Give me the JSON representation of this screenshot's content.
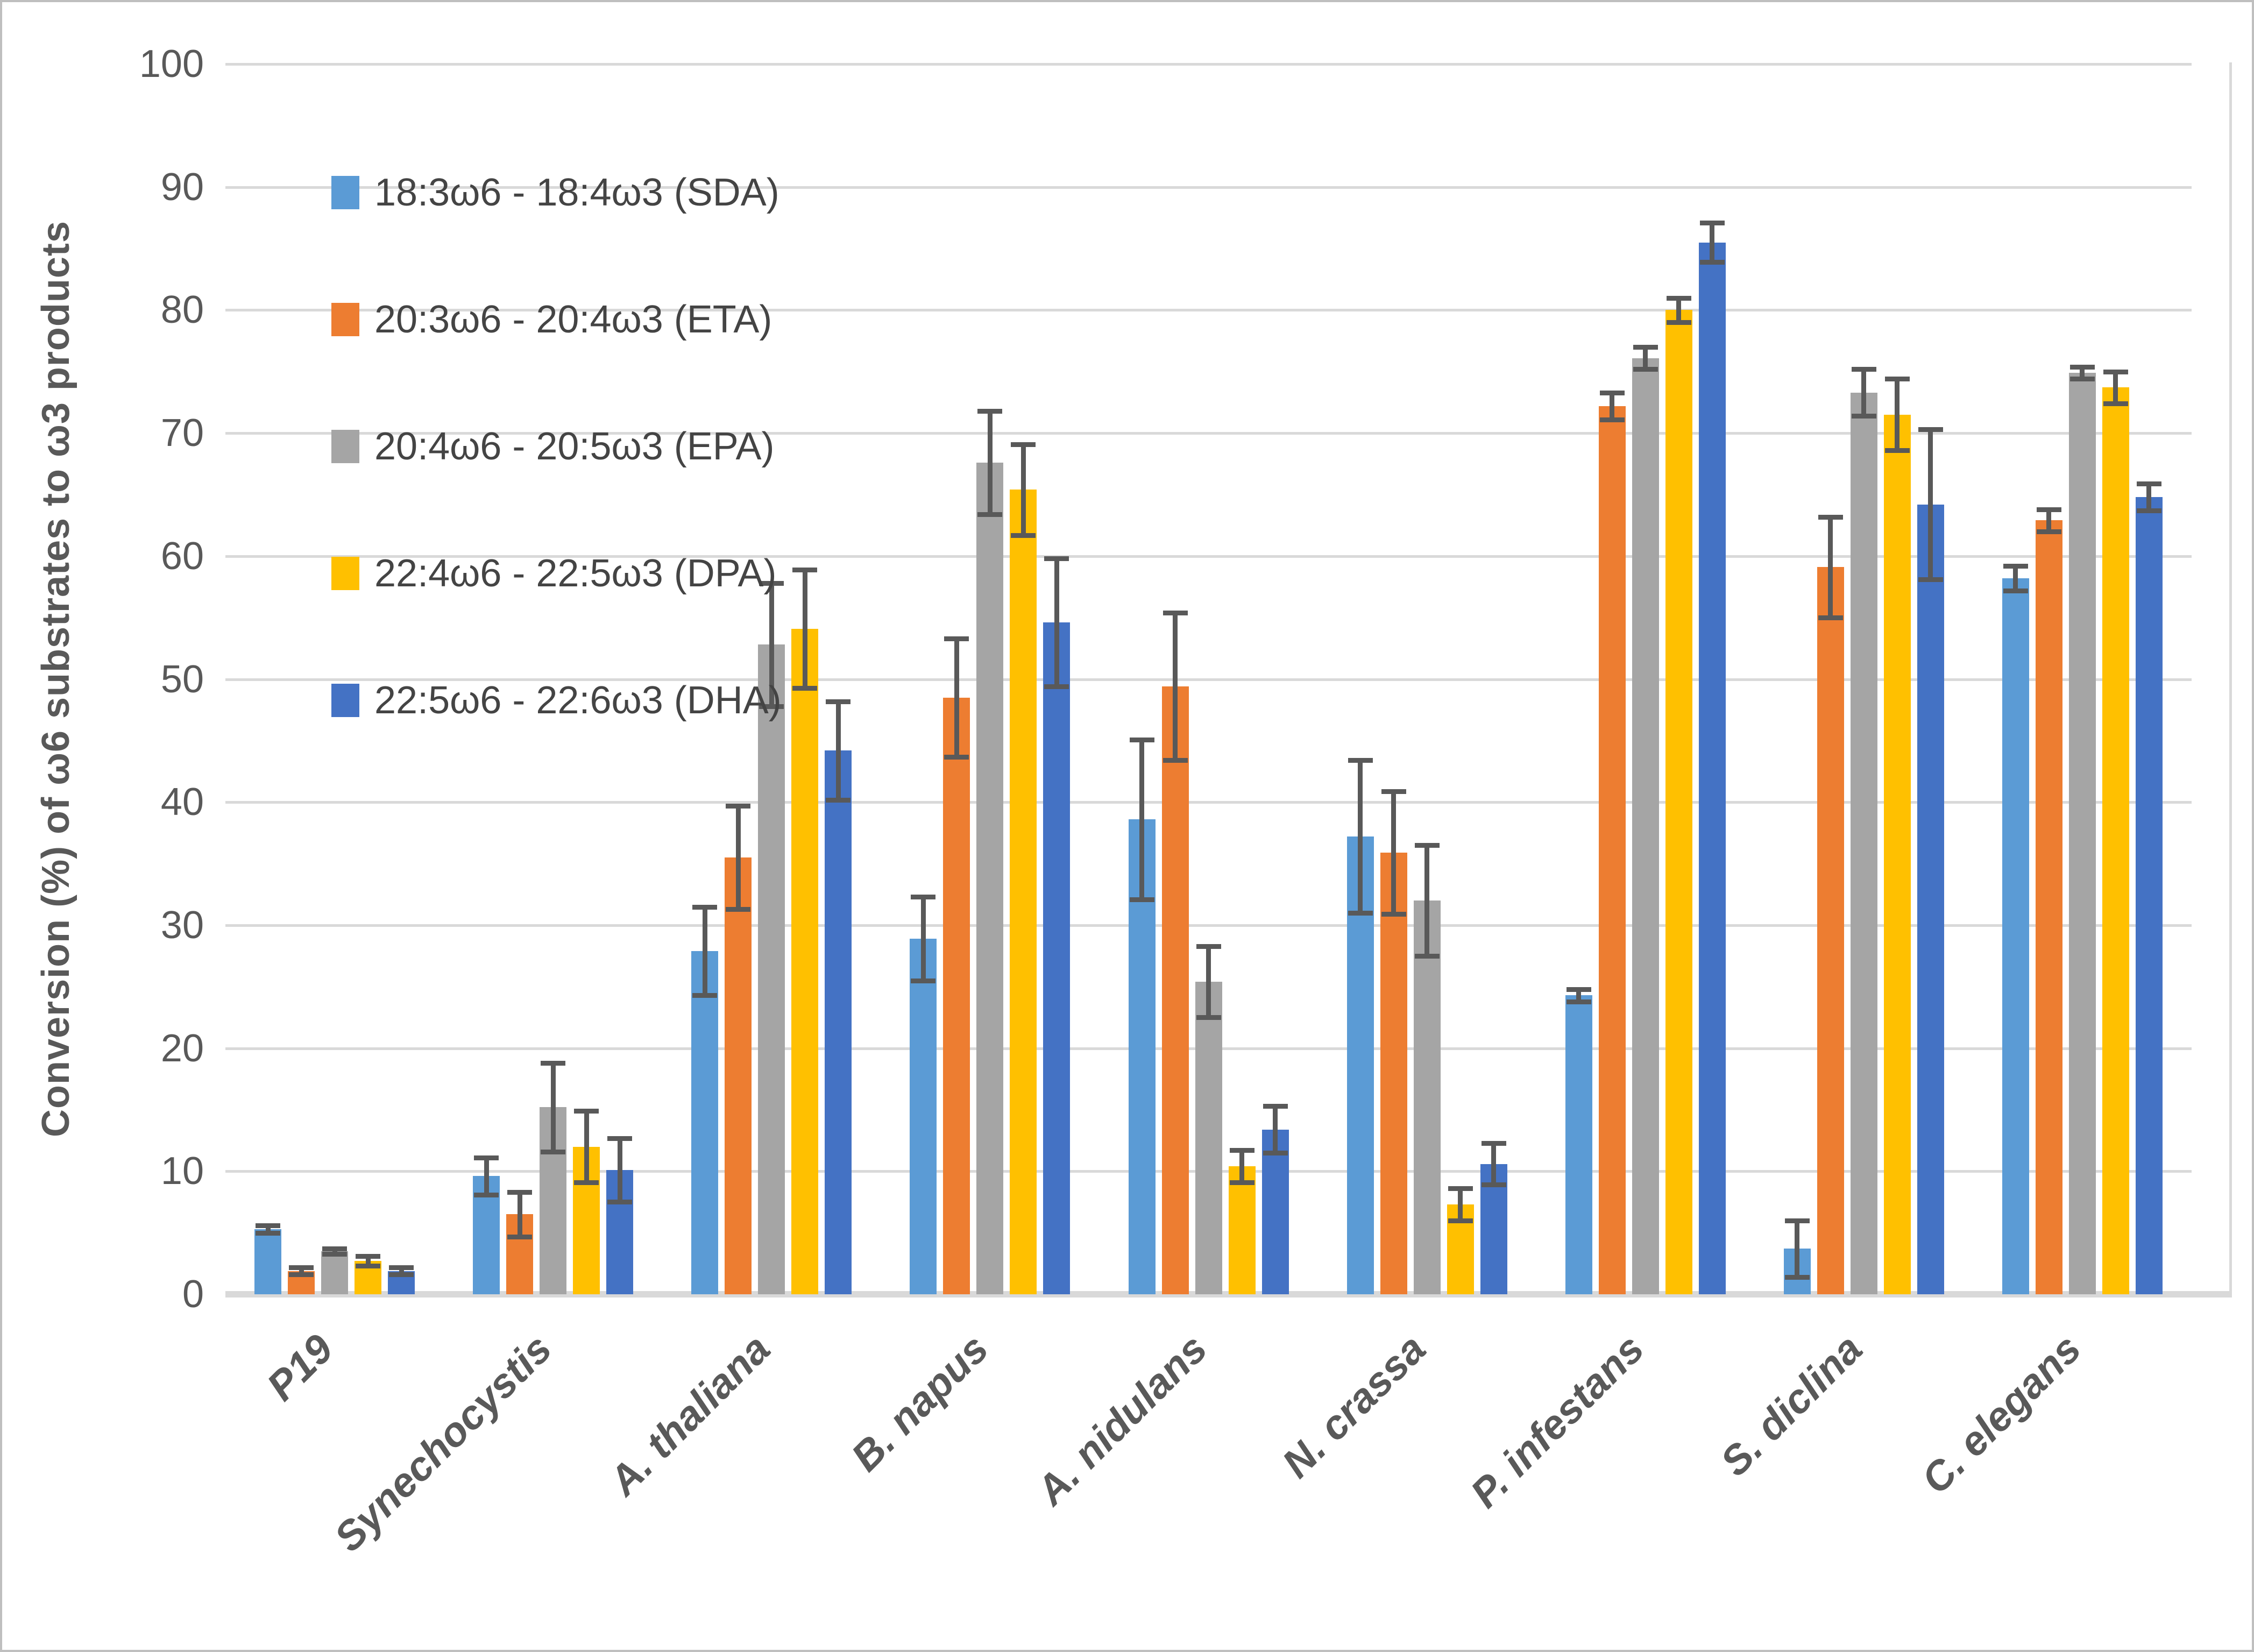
{
  "chart_data": {
    "type": "bar",
    "title": "",
    "xlabel": "",
    "ylabel": "Conversion (%)  of ω6 substrates to ω3 products",
    "ylim": [
      0,
      100
    ],
    "yticks": [
      0,
      10,
      20,
      30,
      40,
      50,
      60,
      70,
      80,
      90,
      100
    ],
    "grid": true,
    "legend_position": "upper-left-inside",
    "error_bars": true,
    "categories": [
      "P19",
      "Synechocystis",
      "A. thaliana",
      "B. napus",
      "A. nidulans",
      "N. crassa",
      "P. infestans",
      "S. diclina",
      "C. elegans"
    ],
    "series": [
      {
        "name": "18:3ω6 - 18:4ω3 (SDA)",
        "color": "#5B9BD5",
        "values": [
          5.3,
          9.6,
          27.9,
          28.9,
          38.6,
          37.2,
          24.3,
          3.7,
          58.2
        ],
        "errors": [
          0.3,
          1.5,
          3.6,
          3.4,
          6.5,
          6.2,
          0.5,
          2.3,
          1.0
        ]
      },
      {
        "name": "20:3ω6 - 20:4ω3 (ETA)",
        "color": "#ED7D31",
        "values": [
          1.9,
          6.5,
          35.5,
          48.5,
          49.4,
          35.9,
          72.2,
          59.1,
          62.9
        ],
        "errors": [
          0.3,
          1.8,
          4.2,
          4.8,
          6.0,
          5.0,
          1.1,
          4.1,
          0.9
        ]
      },
      {
        "name": "20:4ω6 - 20:5ω3 (EPA)",
        "color": "#A5A5A5",
        "values": [
          3.5,
          15.2,
          52.8,
          67.6,
          25.4,
          32.0,
          76.1,
          73.3,
          74.9
        ],
        "errors": [
          0.2,
          3.6,
          5.0,
          4.2,
          2.9,
          4.5,
          0.9,
          1.9,
          0.5
        ]
      },
      {
        "name": "22:4ω6 - 22:5ω3 (DPA)",
        "color": "#FFC000",
        "values": [
          2.7,
          12.0,
          54.1,
          65.4,
          10.4,
          7.3,
          80.0,
          71.5,
          73.7
        ],
        "errors": [
          0.4,
          2.9,
          4.8,
          3.7,
          1.3,
          1.3,
          1.0,
          2.9,
          1.3
        ]
      },
      {
        "name": "22:5ω6 - 22:6ω3 (DHA)",
        "color": "#4472C4",
        "values": [
          1.9,
          10.1,
          44.2,
          54.6,
          13.4,
          10.6,
          85.5,
          64.2,
          64.8
        ],
        "errors": [
          0.3,
          2.6,
          4.0,
          5.2,
          1.9,
          1.7,
          1.6,
          6.1,
          1.1
        ]
      }
    ]
  },
  "colors": {
    "gridline": "#D9D9D9",
    "axisline": "#D9D9D9",
    "error_bar": "#595959",
    "tick_text": "#595959",
    "label_text": "#595959",
    "legend_text": "#444444",
    "frame_border": "#BFBFBF",
    "background": "#FFFFFF"
  }
}
